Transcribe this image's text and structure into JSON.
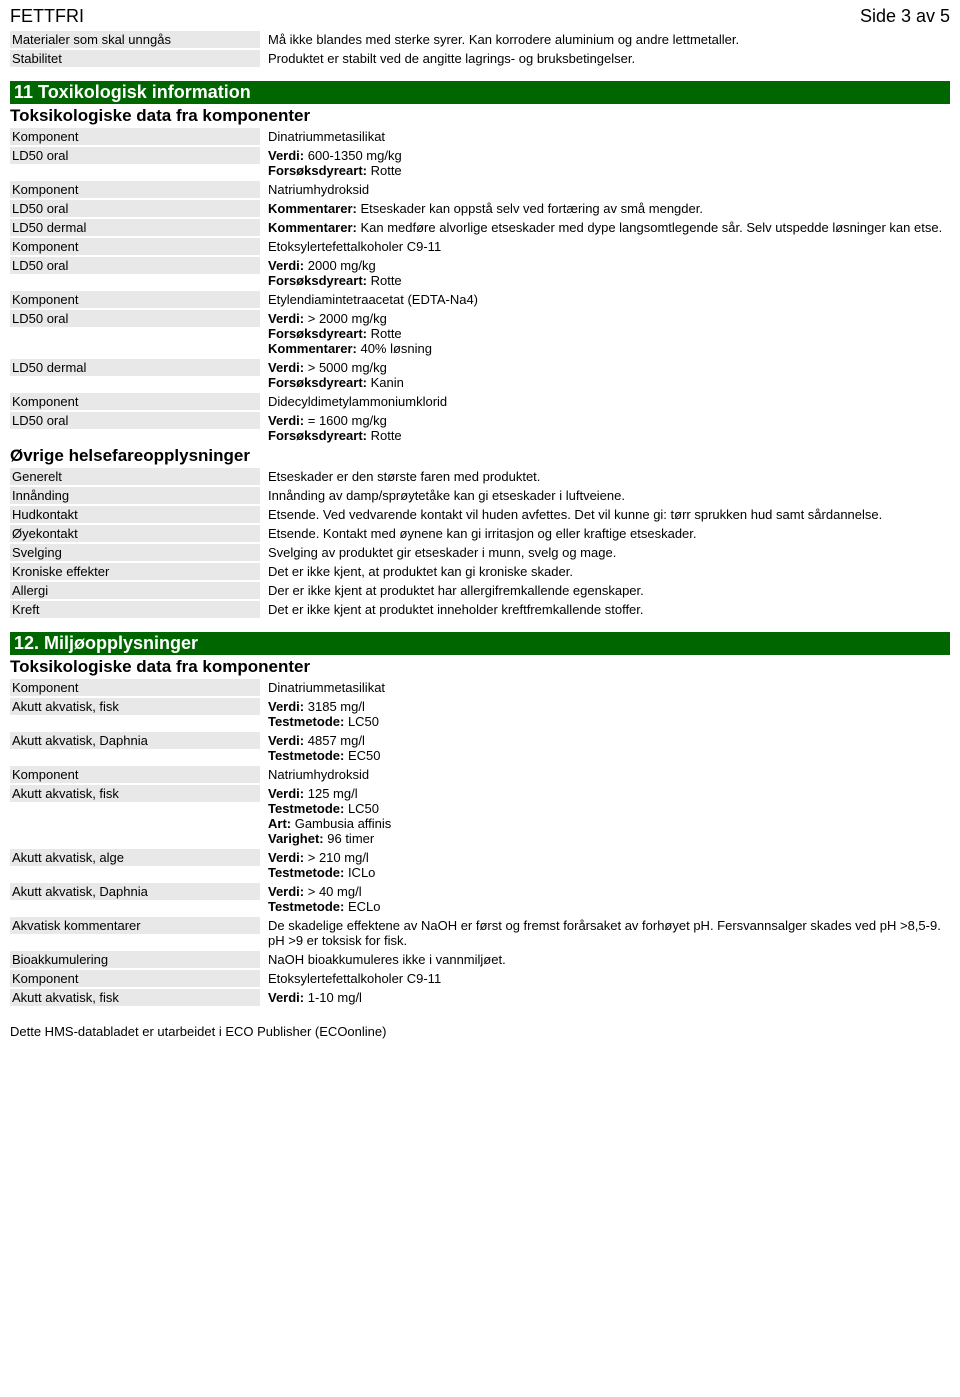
{
  "header": {
    "left": "FETTFRI",
    "right": "Side 3 av 5"
  },
  "top_rows": [
    {
      "label": "Materialer som skal unngås",
      "value": "Må ikke blandes med sterke syrer. Kan korrodere aluminium og andre lettmetaller."
    },
    {
      "label": "Stabilitet",
      "value": "Produktet er stabilt ved de angitte lagrings- og bruksbetingelser."
    }
  ],
  "section11": {
    "title": "11 Toxikologisk information",
    "sub1": "Toksikologiske data fra komponenter",
    "rows1": [
      {
        "label": "Komponent",
        "value": "Dinatriummetasilikat"
      },
      {
        "label": "LD50 oral",
        "lines": [
          {
            "b": "Verdi: ",
            "t": "600-1350 mg/kg"
          },
          {
            "b": "Forsøksdyreart: ",
            "t": "Rotte"
          }
        ]
      },
      {
        "label": "Komponent",
        "value": "Natriumhydroksid"
      },
      {
        "label": "LD50 oral",
        "lines": [
          {
            "b": "Kommentarer: ",
            "t": "Etseskader kan oppstå selv ved fortæring av små mengder."
          }
        ]
      },
      {
        "label": "LD50 dermal",
        "lines": [
          {
            "b": "Kommentarer: ",
            "t": "Kan medføre alvorlige etseskader med dype langsomtlegende sår. Selv utspedde løsninger kan etse."
          }
        ]
      },
      {
        "label": "Komponent",
        "value": "Etoksylertefettalkoholer C9-11"
      },
      {
        "label": "LD50 oral",
        "lines": [
          {
            "b": "Verdi: ",
            "t": "2000 mg/kg"
          },
          {
            "b": "Forsøksdyreart: ",
            "t": "Rotte"
          }
        ]
      },
      {
        "label": "Komponent",
        "value": "Etylendiamintetraacetat (EDTA-Na4)"
      },
      {
        "label": "LD50 oral",
        "lines": [
          {
            "b": "Verdi: ",
            "t": "> 2000 mg/kg"
          },
          {
            "b": "Forsøksdyreart: ",
            "t": "Rotte"
          },
          {
            "b": "Kommentarer: ",
            "t": "40% løsning"
          }
        ]
      },
      {
        "label": "LD50 dermal",
        "lines": [
          {
            "b": "Verdi: ",
            "t": "> 5000 mg/kg"
          },
          {
            "b": "Forsøksdyreart: ",
            "t": "Kanin"
          }
        ]
      },
      {
        "label": "Komponent",
        "value": "Didecyldimetylammoniumklorid"
      },
      {
        "label": "LD50 oral",
        "lines": [
          {
            "b": "Verdi: ",
            "t": "= 1600 mg/kg"
          },
          {
            "b": "Forsøksdyreart: ",
            "t": "Rotte"
          }
        ]
      }
    ],
    "sub2": "Øvrige helsefareopplysninger",
    "rows2": [
      {
        "label": "Generelt",
        "value": "Etseskader er den største faren med produktet."
      },
      {
        "label": "Innånding",
        "value": "Innånding av damp/sprøytetåke kan gi etseskader i luftveiene."
      },
      {
        "label": "Hudkontakt",
        "value": "Etsende. Ved vedvarende kontakt vil huden avfettes. Det vil kunne gi: tørr sprukken hud samt sårdannelse."
      },
      {
        "label": "Øyekontakt",
        "value": "Etsende. Kontakt med øynene kan gi irritasjon og eller kraftige etseskader."
      },
      {
        "label": "Svelging",
        "value": "Svelging av produktet gir etseskader i munn, svelg og mage."
      },
      {
        "label": "Kroniske effekter",
        "value": "Det er ikke kjent, at produktet kan gi kroniske skader."
      },
      {
        "label": "Allergi",
        "value": "Der er ikke kjent at produktet har allergifremkallende egenskaper."
      },
      {
        "label": "Kreft",
        "value": "Det er ikke kjent at produktet inneholder kreftfremkallende stoffer."
      }
    ]
  },
  "section12": {
    "title": "12. Miljøopplysninger",
    "sub1": "Toksikologiske data fra komponenter",
    "rows": [
      {
        "label": "Komponent",
        "value": "Dinatriummetasilikat"
      },
      {
        "label": "Akutt akvatisk, fisk",
        "lines": [
          {
            "b": "Verdi: ",
            "t": "3185 mg/l"
          },
          {
            "b": "Testmetode: ",
            "t": "LC50"
          }
        ]
      },
      {
        "label": "Akutt akvatisk, Daphnia",
        "lines": [
          {
            "b": "Verdi: ",
            "t": "4857 mg/l"
          },
          {
            "b": "Testmetode: ",
            "t": "EC50"
          }
        ]
      },
      {
        "label": "Komponent",
        "value": "Natriumhydroksid"
      },
      {
        "label": "Akutt akvatisk, fisk",
        "lines": [
          {
            "b": "Verdi: ",
            "t": "125 mg/l"
          },
          {
            "b": "Testmetode: ",
            "t": "LC50"
          },
          {
            "b": "Art: ",
            "t": "Gambusia affinis"
          },
          {
            "b": "Varighet: ",
            "t": "96 timer"
          }
        ]
      },
      {
        "label": "Akutt akvatisk, alge",
        "lines": [
          {
            "b": "Verdi: ",
            "t": "> 210 mg/l"
          },
          {
            "b": "Testmetode: ",
            "t": "ICLo"
          }
        ]
      },
      {
        "label": "Akutt akvatisk, Daphnia",
        "lines": [
          {
            "b": "Verdi: ",
            "t": "> 40 mg/l"
          },
          {
            "b": "Testmetode: ",
            "t": "ECLo"
          }
        ]
      },
      {
        "label": "Akvatisk kommentarer",
        "value": "De skadelige effektene av NaOH er først og fremst forårsaket av forhøyet pH. Fersvannsalger skades ved pH >8,5-9. pH >9 er toksisk for fisk."
      },
      {
        "label": "Bioakkumulering",
        "value": "NaOH bioakkumuleres ikke i vannmiljøet."
      },
      {
        "label": "Komponent",
        "value": "Etoksylertefettalkoholer C9-11"
      },
      {
        "label": "Akutt akvatisk, fisk",
        "lines": [
          {
            "b": "Verdi: ",
            "t": "1-10 mg/l"
          }
        ]
      }
    ]
  },
  "footer": "Dette HMS-databladet er utarbeidet i ECO Publisher (ECOonline)"
}
